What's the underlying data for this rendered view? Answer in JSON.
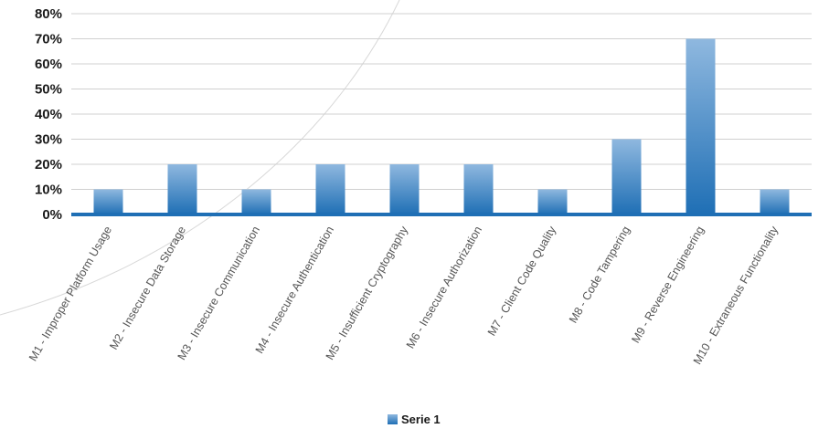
{
  "chart_data": {
    "type": "bar",
    "categories": [
      "M1 - Improper Platform Usage",
      "M2 - Insecure Data Storage",
      "M3 - Insecure Communication",
      "M4 - Insecure Authentication",
      "M5 - Insufficient Cryptography",
      "M6 - Insecure Authorization",
      "M7 - Client Code Quality",
      "M8 - Code Tampering",
      "M9 - Reverse Engineering",
      "M10 - Extraneous Functionality"
    ],
    "series": [
      {
        "name": "Serie 1",
        "values": [
          10,
          20,
          10,
          20,
          20,
          20,
          10,
          30,
          70,
          10
        ]
      }
    ],
    "ylim": [
      0,
      80
    ],
    "yticks": [
      "0%",
      "10%",
      "20%",
      "30%",
      "40%",
      "50%",
      "60%",
      "70%",
      "80%"
    ],
    "grid": true,
    "legend": "bottom",
    "colors": {
      "bar_top": "#8fb8df",
      "bar_bottom": "#1f6fb5",
      "axis": "#1f6fb5",
      "grid": "#d0d0d0"
    }
  }
}
